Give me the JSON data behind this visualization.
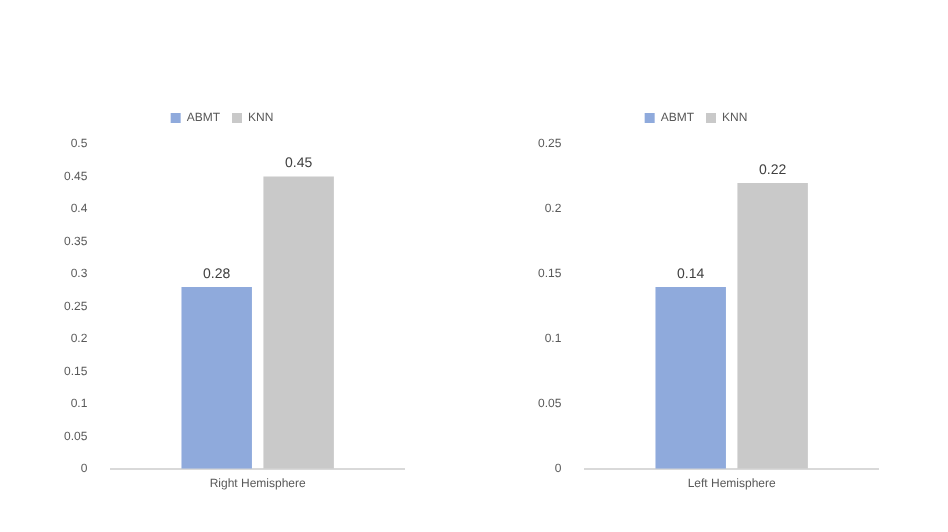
{
  "chart_data": [
    {
      "type": "bar",
      "categories": [
        "Right Hemisphere"
      ],
      "series": [
        {
          "name": "ABMT",
          "color": "#8faadc",
          "values": [
            0.28
          ]
        },
        {
          "name": "KNN",
          "color": "#c9c9c9",
          "values": [
            0.45
          ]
        }
      ],
      "ylim": [
        0,
        0.5
      ],
      "yticks": [
        0,
        0.05,
        0.1,
        0.15,
        0.2,
        0.25,
        0.3,
        0.35,
        0.4,
        0.45,
        0.5
      ],
      "grid": false,
      "legend": "top",
      "data_labels": true
    },
    {
      "type": "bar",
      "categories": [
        "Left Hemisphere"
      ],
      "series": [
        {
          "name": "ABMT",
          "color": "#8faadc",
          "values": [
            0.14
          ]
        },
        {
          "name": "KNN",
          "color": "#c9c9c9",
          "values": [
            0.22
          ]
        }
      ],
      "ylim": [
        0,
        0.25
      ],
      "yticks": [
        0,
        0.05,
        0.1,
        0.15,
        0.2,
        0.25
      ],
      "grid": false,
      "legend": "top",
      "data_labels": true
    }
  ]
}
